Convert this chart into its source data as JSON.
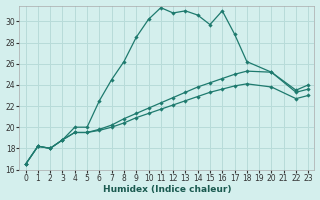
{
  "xlabel": "Humidex (Indice chaleur)",
  "xlim": [
    -0.5,
    23.5
  ],
  "ylim": [
    16,
    31.5
  ],
  "yticks": [
    16,
    18,
    20,
    22,
    24,
    26,
    28,
    30
  ],
  "xticks": [
    0,
    1,
    2,
    3,
    4,
    5,
    6,
    7,
    8,
    9,
    10,
    11,
    12,
    13,
    14,
    15,
    16,
    17,
    18,
    19,
    20,
    21,
    22,
    23
  ],
  "xticklabels": [
    "0",
    "1",
    "2",
    "3",
    "4",
    "5",
    "6",
    "7",
    "8",
    "9",
    "10",
    "11",
    "12",
    "13",
    "14",
    "15",
    "16",
    "17",
    "18",
    "19",
    "20",
    "21",
    "22",
    "23"
  ],
  "background_color": "#d4efed",
  "grid_color": "#b8dbd9",
  "line_color": "#1e7a6e",
  "lines": [
    {
      "x": [
        0,
        1,
        2,
        3,
        4,
        5,
        6,
        7,
        8,
        9,
        10,
        11,
        12,
        13,
        14,
        15,
        16,
        17,
        18,
        20,
        22,
        23
      ],
      "y": [
        16.5,
        18.2,
        18.0,
        18.8,
        20.0,
        20.0,
        22.5,
        24.5,
        26.2,
        28.5,
        30.2,
        31.3,
        30.8,
        31.0,
        30.6,
        29.7,
        31.0,
        28.8,
        26.2,
        25.2,
        23.5,
        24.0
      ]
    },
    {
      "x": [
        0,
        1,
        2,
        3,
        4,
        5,
        6,
        7,
        8,
        9,
        10,
        11,
        12,
        13,
        14,
        15,
        16,
        17,
        18,
        20,
        22,
        23
      ],
      "y": [
        16.5,
        18.2,
        18.0,
        18.8,
        19.5,
        19.5,
        19.8,
        20.2,
        20.8,
        21.3,
        21.8,
        22.3,
        22.8,
        23.3,
        23.8,
        24.2,
        24.6,
        25.0,
        25.3,
        25.2,
        23.3,
        23.6
      ]
    },
    {
      "x": [
        0,
        1,
        2,
        3,
        4,
        5,
        6,
        7,
        8,
        9,
        10,
        11,
        12,
        13,
        14,
        15,
        16,
        17,
        18,
        20,
        22,
        23
      ],
      "y": [
        16.5,
        18.2,
        18.0,
        18.8,
        19.5,
        19.5,
        19.7,
        20.0,
        20.4,
        20.9,
        21.3,
        21.7,
        22.1,
        22.5,
        22.9,
        23.3,
        23.6,
        23.9,
        24.1,
        23.8,
        22.7,
        23.0
      ]
    }
  ]
}
